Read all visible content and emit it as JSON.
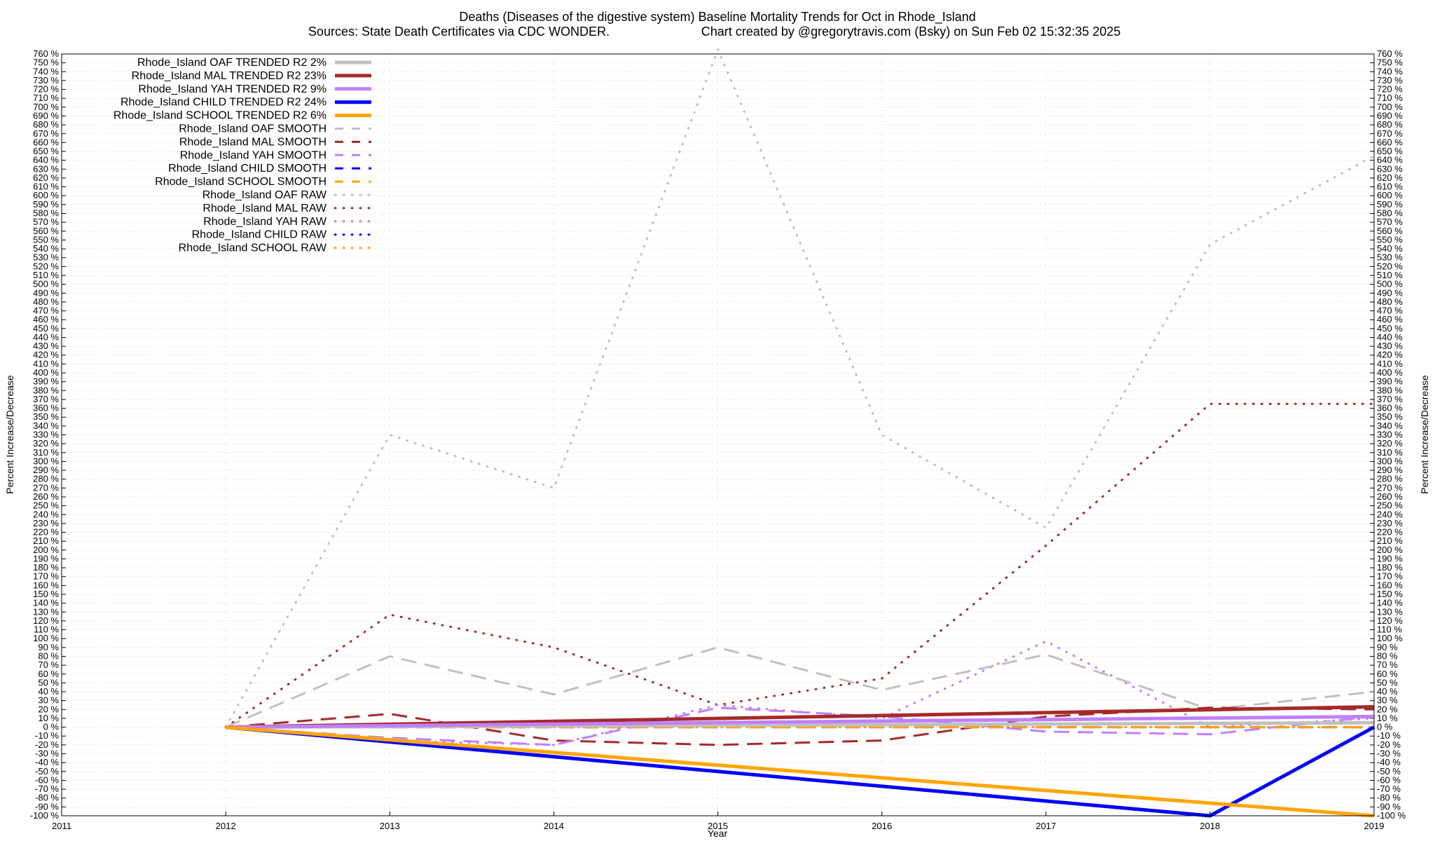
{
  "chart_data": {
    "type": "line",
    "title_line1": "Deaths (Diseases of the digestive system)  Baseline Mortality Trends for Oct in Rhode_Island",
    "title_line2_left": "Sources: State Death Certificates via CDC WONDER.",
    "title_line2_right": "Chart created by @gregorytravis.com (Bsky) on Sun Feb 02 15:32:35 2025",
    "xlabel": "Year",
    "ylabel_left": "Percent Increase/Decrease",
    "ylabel_right": "Percent Increase/Decrease",
    "xlim": [
      2011,
      2019
    ],
    "ylim": [
      -100,
      760
    ],
    "ytick_step": 10,
    "y_tick_suffix": " %",
    "x_ticks": [
      "2011",
      "2012",
      "2013",
      "2014",
      "2015",
      "2016",
      "2017",
      "2018",
      "2019"
    ],
    "grid": true,
    "legend_placement": "top-left",
    "series": [
      {
        "name": "Rhode_Island OAF TRENDED R2   2%",
        "style": "solid",
        "color": "#c0c0c0",
        "x": [
          2012,
          2019
        ],
        "y": [
          0,
          5
        ]
      },
      {
        "name": "Rhode_Island MAL TRENDED R2  23%",
        "style": "solid",
        "color": "#a52a2a",
        "x": [
          2012,
          2019
        ],
        "y": [
          0,
          23
        ]
      },
      {
        "name": "Rhode_Island YAH TRENDED R2   9%",
        "style": "solid",
        "color": "#c080ff",
        "x": [
          2012,
          2019
        ],
        "y": [
          0,
          12
        ]
      },
      {
        "name": "Rhode_Island CHILD TRENDED R2  24%",
        "style": "solid",
        "color": "#0000ff",
        "x": [
          2012,
          2018,
          2019
        ],
        "y": [
          0,
          -100,
          0
        ]
      },
      {
        "name": "Rhode_Island SCHOOL TRENDED R2   6%",
        "style": "solid",
        "color": "#ffa500",
        "x": [
          2012,
          2019
        ],
        "y": [
          0,
          -100
        ]
      },
      {
        "name": "Rhode_Island OAF SMOOTH",
        "style": "dashed",
        "color": "#c0c0c0",
        "x": [
          2012,
          2013,
          2014,
          2015,
          2016,
          2017,
          2018,
          2019
        ],
        "y": [
          0,
          80,
          37,
          90,
          42,
          82,
          20,
          40
        ]
      },
      {
        "name": "Rhode_Island MAL SMOOTH",
        "style": "dashed",
        "color": "#a52a2a",
        "x": [
          2012,
          2013,
          2014,
          2015,
          2016,
          2017,
          2018,
          2019
        ],
        "y": [
          0,
          15,
          -15,
          -20,
          -15,
          12,
          22,
          20
        ]
      },
      {
        "name": "Rhode_Island YAH SMOOTH",
        "style": "dashed",
        "color": "#c080ff",
        "x": [
          2012,
          2013,
          2014,
          2015,
          2016,
          2017,
          2018,
          2019
        ],
        "y": [
          0,
          -12,
          -20,
          22,
          12,
          -5,
          -8,
          12
        ]
      },
      {
        "name": "Rhode_Island CHILD SMOOTH",
        "style": "dashed",
        "color": "#0000ff",
        "x": [
          2012,
          2019
        ],
        "y": [
          0,
          0
        ]
      },
      {
        "name": "Rhode_Island SCHOOL SMOOTH",
        "style": "dashed",
        "color": "#ffa500",
        "x": [
          2012,
          2019
        ],
        "y": [
          0,
          0
        ]
      },
      {
        "name": "Rhode_Island OAF RAW",
        "style": "dotted",
        "color": "#c0c0c0",
        "x": [
          2012,
          2013,
          2014,
          2015,
          2016,
          2017,
          2018,
          2019
        ],
        "y": [
          0,
          330,
          270,
          765,
          330,
          225,
          545,
          645
        ]
      },
      {
        "name": "Rhode_Island MAL RAW",
        "style": "dotted",
        "color": "#a52a2a",
        "x": [
          2012,
          2013,
          2014,
          2015,
          2016,
          2017,
          2018,
          2019
        ],
        "y": [
          0,
          127,
          90,
          25,
          55,
          205,
          365,
          365
        ]
      },
      {
        "name": "Rhode_Island YAH RAW",
        "style": "dotted",
        "color": "#c080ff",
        "x": [
          2012,
          2013,
          2014,
          2015,
          2016,
          2017,
          2018,
          2019
        ],
        "y": [
          0,
          -15,
          -20,
          25,
          10,
          97,
          0,
          10
        ]
      },
      {
        "name": "Rhode_Island CHILD RAW",
        "style": "dotted",
        "color": "#0000ff",
        "x": [
          2012,
          2019
        ],
        "y": [
          0,
          0
        ]
      },
      {
        "name": "Rhode_Island SCHOOL RAW",
        "style": "dotted",
        "color": "#ffa500",
        "x": [
          2012,
          2019
        ],
        "y": [
          0,
          0
        ]
      }
    ]
  }
}
